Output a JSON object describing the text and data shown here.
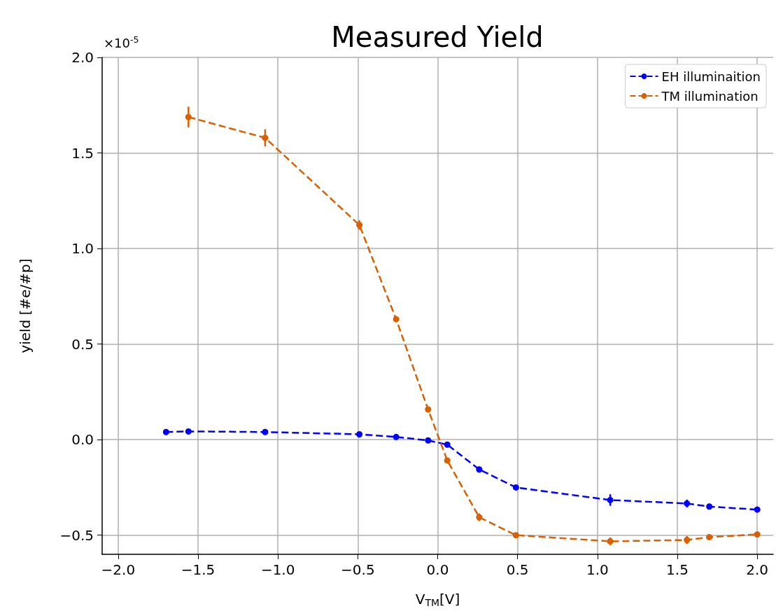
{
  "chart_data": {
    "type": "line",
    "title": "Measured Yield",
    "xlabel": "V$_{TM}$[V]",
    "ylabel": "yield [#e/#p]",
    "annotations": [
      "×10$^{-5}$"
    ],
    "xlim": [
      -2.1,
      2.1
    ],
    "ylim": [
      -0.6,
      2.0
    ],
    "xticks": [
      {
        "value": -2,
        "label": "−2.0"
      },
      {
        "value": -1.5,
        "label": "−1.5"
      },
      {
        "value": -1,
        "label": "−1.0"
      },
      {
        "value": -0.5,
        "label": "−0.5"
      },
      {
        "value": 0,
        "label": "0.0"
      },
      {
        "value": 0.5,
        "label": "0.5"
      },
      {
        "value": 1,
        "label": "1.0"
      },
      {
        "value": 1.5,
        "label": "1.5"
      },
      {
        "value": 2,
        "label": "2.0"
      }
    ],
    "yticks": [
      {
        "value": -0.5,
        "label": "−0.5"
      },
      {
        "value": 0,
        "label": "0.0"
      },
      {
        "value": 0.5,
        "label": "0.5"
      },
      {
        "value": 1,
        "label": "1.0"
      },
      {
        "value": 1.5,
        "label": "1.5"
      },
      {
        "value": 2,
        "label": "2.0"
      }
    ],
    "grid": true,
    "legend": "top right",
    "marker": "circle",
    "line_style": "dashed",
    "series": [
      {
        "name": "EH illuminaition",
        "color": "#0000ff",
        "x": [
          -1.7,
          -1.56,
          -1.08,
          -0.49,
          -0.26,
          -0.06,
          0.06,
          0.26,
          0.49,
          1.08,
          1.56,
          1.7,
          2.0
        ],
        "values": [
          0.04,
          0.043,
          0.04,
          0.028,
          0.014,
          -0.004,
          -0.026,
          -0.156,
          -0.25,
          -0.316,
          -0.334,
          -0.35,
          -0.366
        ],
        "errors": [
          0.01,
          0.01,
          0.01,
          0.01,
          0.01,
          0.01,
          0.01,
          0.015,
          0.01,
          0.03,
          0.02,
          0.015,
          0.01
        ]
      },
      {
        "name": "TM illumination",
        "color": "#d95f02",
        "x": [
          -1.56,
          -1.08,
          -0.49,
          -0.26,
          -0.06,
          0.06,
          0.26,
          0.49,
          1.08,
          1.56,
          1.7,
          2.0
        ],
        "values": [
          1.688,
          1.579,
          1.123,
          0.63,
          0.158,
          -0.109,
          -0.406,
          -0.5,
          -0.532,
          -0.525,
          -0.51,
          -0.496
        ],
        "errors": [
          0.054,
          0.045,
          0.025,
          0.01,
          0.01,
          0.01,
          0.02,
          0.01,
          0.02,
          0.02,
          0.01,
          0.01
        ]
      }
    ]
  }
}
